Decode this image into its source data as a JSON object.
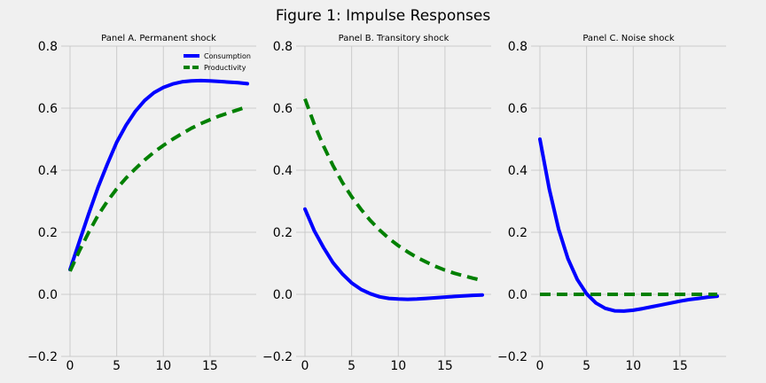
{
  "figure_title": "Figure 1: Impulse Responses",
  "colors": {
    "background": "#f0f0f0",
    "grid": "#cbcbcb",
    "consumption": "#0000ff",
    "productivity": "#008000"
  },
  "chart_data": [
    {
      "type": "line",
      "title": "Panel A. Permanent shock",
      "xlabel": "",
      "ylabel": "",
      "xlim": [
        0,
        19
      ],
      "ylim": [
        -0.2,
        0.8
      ],
      "xticks": [
        0,
        5,
        10,
        15
      ],
      "yticks": [
        -0.2,
        0.0,
        0.2,
        0.4,
        0.6,
        0.8
      ],
      "ytick_labels": [
        "−0.2",
        "0.0",
        "0.2",
        "0.4",
        "0.6",
        "0.8"
      ],
      "grid": true,
      "legend": "top-right",
      "x": [
        0,
        1,
        2,
        3,
        4,
        5,
        6,
        7,
        8,
        9,
        10,
        11,
        12,
        13,
        14,
        15,
        16,
        17,
        18,
        19
      ],
      "series": [
        {
          "name": "Consumption",
          "style": "solid",
          "values": [
            0.08,
            0.17,
            0.26,
            0.345,
            0.42,
            0.49,
            0.545,
            0.59,
            0.625,
            0.65,
            0.667,
            0.678,
            0.685,
            0.688,
            0.689,
            0.688,
            0.686,
            0.684,
            0.682,
            0.679
          ]
        },
        {
          "name": "Productivity",
          "style": "dashed",
          "values": [
            0.075,
            0.14,
            0.2,
            0.255,
            0.3,
            0.34,
            0.375,
            0.405,
            0.433,
            0.458,
            0.48,
            0.5,
            0.518,
            0.535,
            0.55,
            0.563,
            0.575,
            0.585,
            0.595,
            0.605
          ]
        }
      ]
    },
    {
      "type": "line",
      "title": "Panel B. Transitory shock",
      "xlabel": "",
      "ylabel": "",
      "xlim": [
        0,
        19
      ],
      "ylim": [
        -0.2,
        0.8
      ],
      "xticks": [
        0,
        5,
        10,
        15
      ],
      "yticks": [
        -0.2,
        0.0,
        0.2,
        0.4,
        0.6,
        0.8
      ],
      "ytick_labels": [
        "−0.2",
        "0.0",
        "0.2",
        "0.4",
        "0.6",
        "0.8"
      ],
      "grid": true,
      "legend": "",
      "x": [
        0,
        1,
        2,
        3,
        4,
        5,
        6,
        7,
        8,
        9,
        10,
        11,
        12,
        13,
        14,
        15,
        16,
        17,
        18,
        19
      ],
      "series": [
        {
          "name": "",
          "style": "solid",
          "values": [
            0.275,
            0.205,
            0.15,
            0.102,
            0.066,
            0.037,
            0.016,
            0.002,
            -0.008,
            -0.013,
            -0.015,
            -0.016,
            -0.015,
            -0.013,
            -0.011,
            -0.009,
            -0.007,
            -0.005,
            -0.003,
            -0.002
          ]
        },
        {
          "name": "",
          "style": "dashed",
          "values": [
            0.63,
            0.548,
            0.477,
            0.415,
            0.361,
            0.315,
            0.274,
            0.238,
            0.207,
            0.18,
            0.157,
            0.137,
            0.119,
            0.104,
            0.09,
            0.078,
            0.068,
            0.06,
            0.052,
            0.045
          ]
        }
      ]
    },
    {
      "type": "line",
      "title": "Panel C. Noise shock",
      "xlabel": "",
      "ylabel": "",
      "xlim": [
        0,
        19
      ],
      "ylim": [
        -0.2,
        0.8
      ],
      "xticks": [
        0,
        5,
        10,
        15
      ],
      "yticks": [
        -0.2,
        0.0,
        0.2,
        0.4,
        0.6,
        0.8
      ],
      "ytick_labels": [
        "−0.2",
        "0.0",
        "0.2",
        "0.4",
        "0.6",
        "0.8"
      ],
      "grid": true,
      "legend": "",
      "x": [
        0,
        1,
        2,
        3,
        4,
        5,
        6,
        7,
        8,
        9,
        10,
        11,
        12,
        13,
        14,
        15,
        16,
        17,
        18,
        19
      ],
      "series": [
        {
          "name": "",
          "style": "solid",
          "values": [
            0.5,
            0.34,
            0.21,
            0.115,
            0.048,
            0.002,
            -0.028,
            -0.045,
            -0.053,
            -0.054,
            -0.051,
            -0.046,
            -0.04,
            -0.034,
            -0.028,
            -0.022,
            -0.017,
            -0.013,
            -0.009,
            -0.006
          ]
        },
        {
          "name": "",
          "style": "dashed",
          "values": [
            0,
            0,
            0,
            0,
            0,
            0,
            0,
            0,
            0,
            0,
            0,
            0,
            0,
            0,
            0,
            0,
            0,
            0,
            0,
            0
          ]
        }
      ]
    }
  ]
}
